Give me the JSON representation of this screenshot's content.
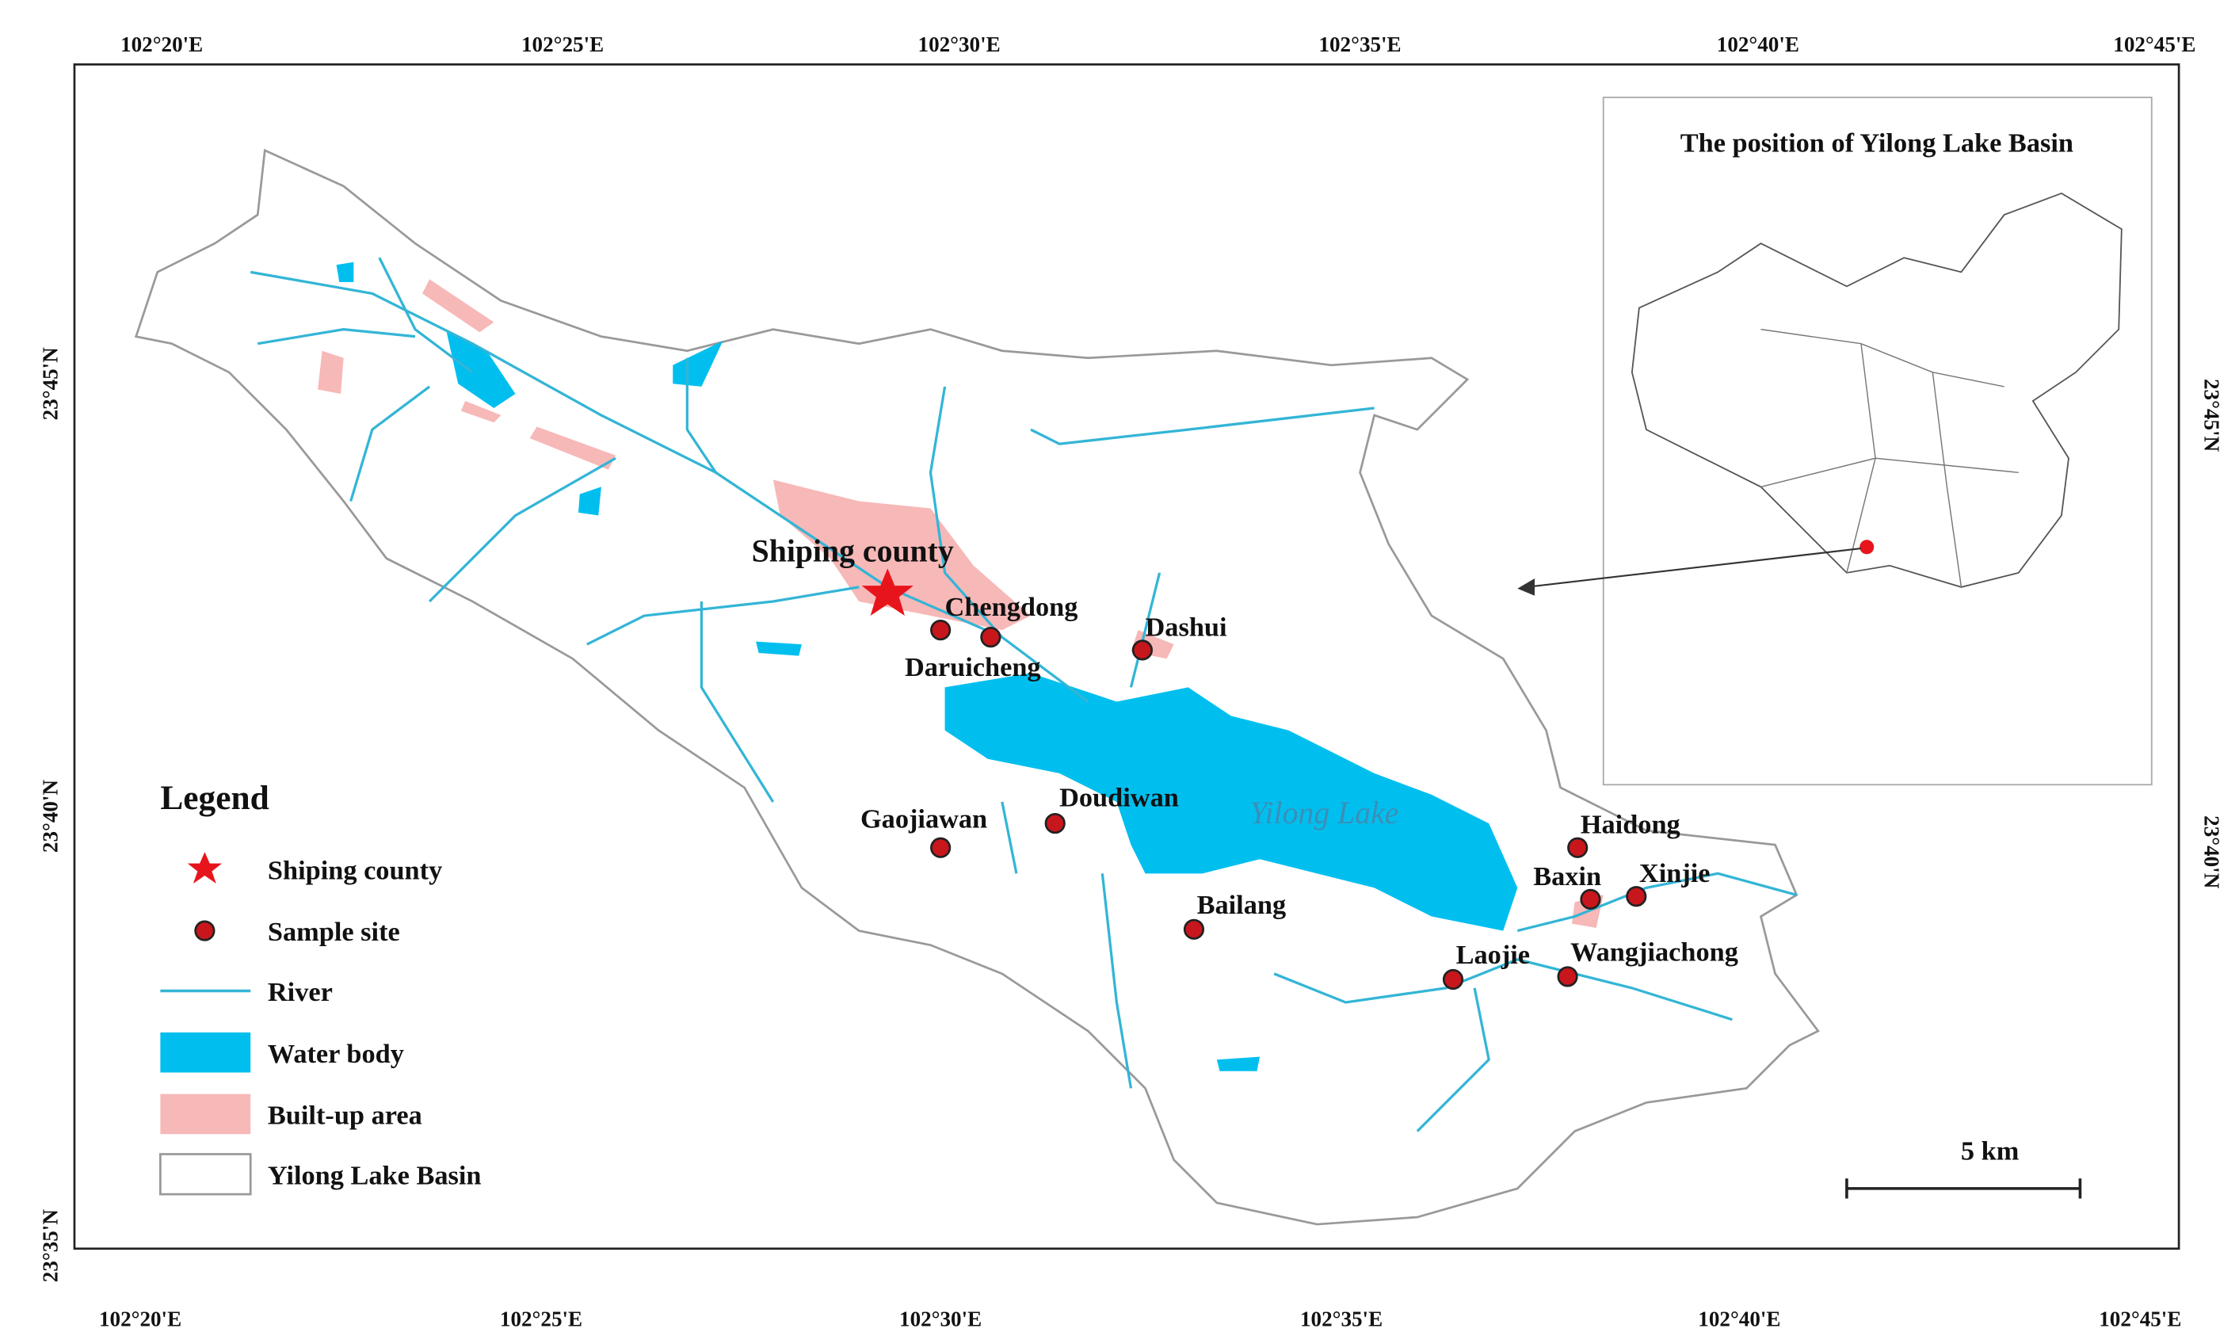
{
  "map": {
    "axes": {
      "top": [
        "102°20'E",
        "102°25'E",
        "102°30'E",
        "102°35'E",
        "102°40'E",
        "102°45'E"
      ],
      "bottom": [
        "102°20'E",
        "102°25'E",
        "102°30'E",
        "102°35'E",
        "102°40'E",
        "102°45'E"
      ],
      "left": [
        "23°45'N",
        "23°40'N",
        "23°35'N"
      ],
      "right": [
        "23°45'N",
        "23°40'N"
      ]
    },
    "inset_title": "The position of Yilong Lake Basin",
    "legend": {
      "title": "Legend",
      "items": [
        "Shiping county",
        "Sample site",
        "River",
        "Water body",
        "Built-up area",
        "Yilong Lake Basin"
      ]
    },
    "places": {
      "county": "Shiping county",
      "lake": "Yilong Lake",
      "sites": [
        "Chengdong",
        "Daruicheng",
        "Dashui",
        "Gaojiawan",
        "Doudiwan",
        "Bailang",
        "Haidong",
        "Baxin",
        "Xinjie",
        "Laojie",
        "Wangjiachong"
      ]
    },
    "scale_bar": "5 km"
  }
}
